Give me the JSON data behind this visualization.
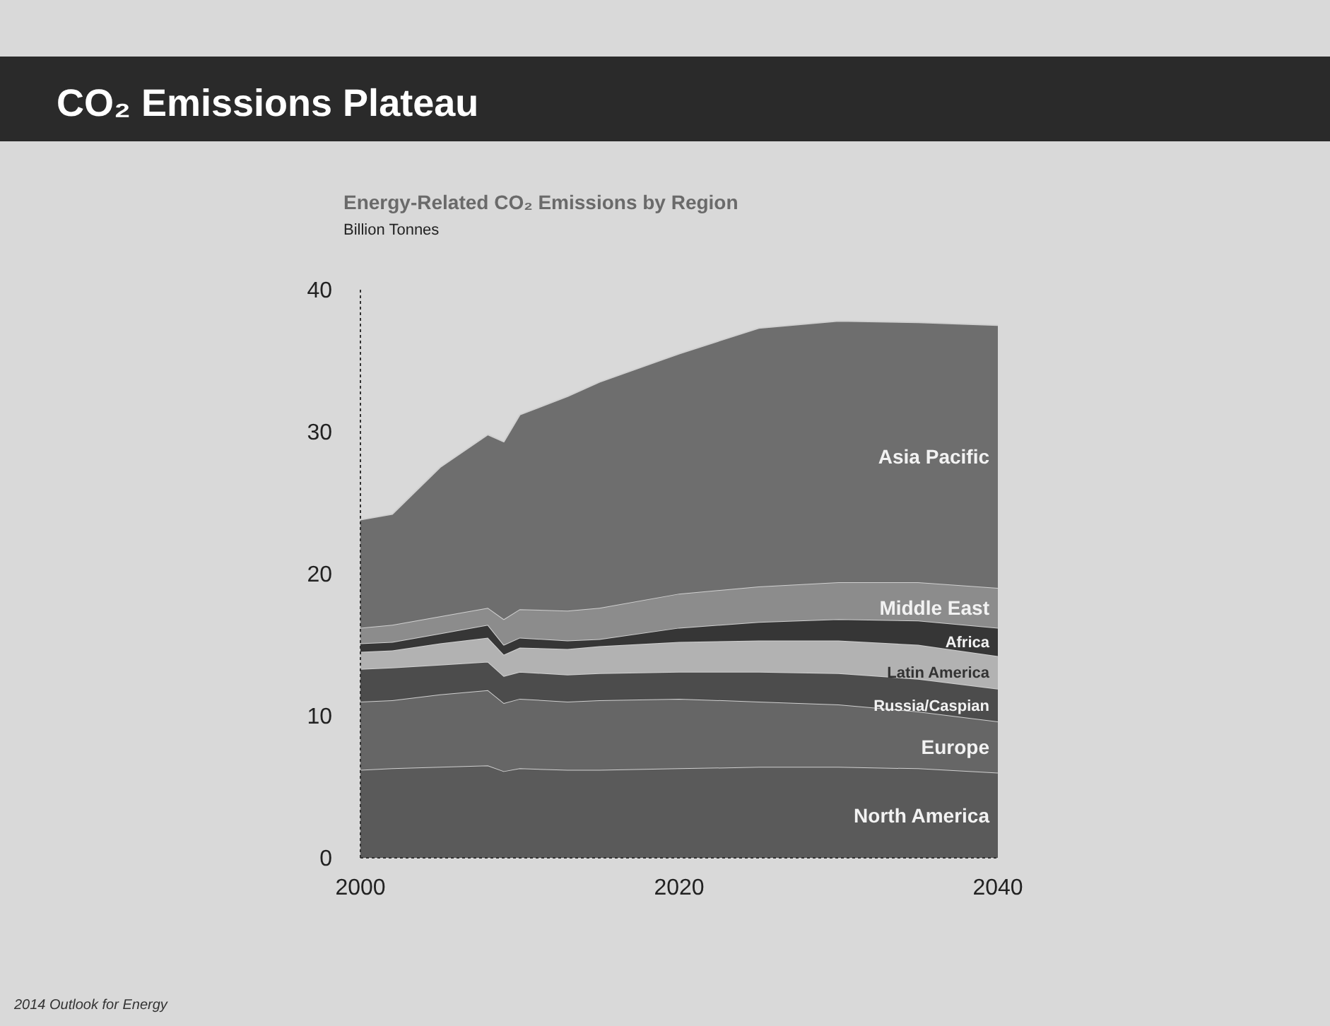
{
  "chart_data": {
    "type": "area",
    "stacked": true,
    "title": "CO₂ Emissions Plateau",
    "subtitle": "Energy-Related CO₂ Emissions by Region",
    "ylabel": "Billion Tonnes",
    "annotations": [
      "2014 Outlook for Energy"
    ],
    "x": [
      2000,
      2002,
      2005,
      2008,
      2009,
      2010,
      2013,
      2015,
      2020,
      2025,
      2030,
      2035,
      2040
    ],
    "xlim": [
      2000,
      2040
    ],
    "xticks": [
      2000,
      2020,
      2040
    ],
    "ylim": [
      0,
      40
    ],
    "yticks": [
      0,
      10,
      20,
      30,
      40
    ],
    "grid": false,
    "legend": false,
    "series": [
      {
        "name": "North America",
        "color": "#5a5a5a",
        "values": [
          6.2,
          6.3,
          6.4,
          6.5,
          6.1,
          6.3,
          6.2,
          6.2,
          6.3,
          6.4,
          6.4,
          6.3,
          6.0
        ]
      },
      {
        "name": "Europe",
        "color": "#666666",
        "values": [
          4.8,
          4.8,
          5.1,
          5.3,
          4.8,
          4.9,
          4.8,
          4.9,
          4.9,
          4.6,
          4.4,
          4.0,
          3.6
        ]
      },
      {
        "name": "Russia/Caspian",
        "color": "#4c4c4c",
        "values": [
          2.3,
          2.3,
          2.1,
          2.0,
          1.9,
          1.9,
          1.9,
          1.9,
          1.9,
          2.1,
          2.2,
          2.3,
          2.3
        ]
      },
      {
        "name": "Latin America",
        "color": "#b2b2b2",
        "values": [
          1.2,
          1.2,
          1.5,
          1.7,
          1.5,
          1.7,
          1.8,
          1.9,
          2.1,
          2.2,
          2.3,
          2.4,
          2.3
        ]
      },
      {
        "name": "Africa",
        "color": "#363636",
        "values": [
          0.6,
          0.6,
          0.7,
          0.9,
          0.7,
          0.7,
          0.6,
          0.5,
          1.0,
          1.3,
          1.5,
          1.7,
          2.0
        ]
      },
      {
        "name": "Middle East",
        "color": "#8c8c8c",
        "values": [
          1.1,
          1.2,
          1.2,
          1.2,
          1.8,
          2.0,
          2.1,
          2.2,
          2.4,
          2.5,
          2.6,
          2.7,
          2.8
        ]
      },
      {
        "name": "Asia Pacific",
        "color": "#6e6e6e",
        "values": [
          7.6,
          7.8,
          10.5,
          12.2,
          12.5,
          13.7,
          15.1,
          15.9,
          16.9,
          18.2,
          18.4,
          18.3,
          18.5
        ]
      }
    ]
  }
}
